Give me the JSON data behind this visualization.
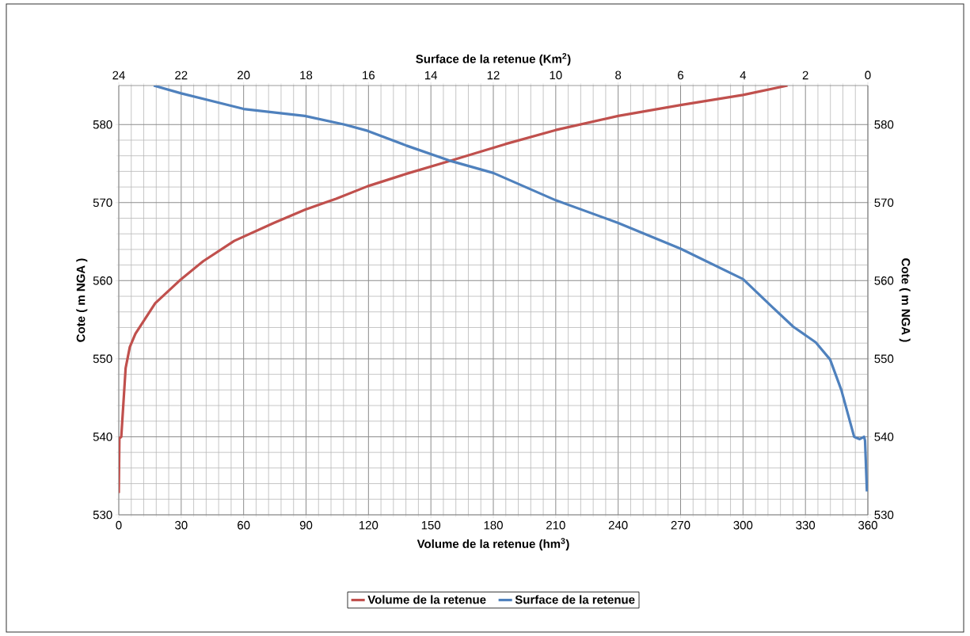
{
  "chart_data": {
    "type": "line",
    "xlabel": "Volume de la retenue (hm$^{3}$)",
    "x2label": "Surface de la retenue (Km$^{2}$)",
    "ylabel": "Cote ( m NGA )",
    "y2label": "Cote ( m NGA )",
    "xlim": [
      0,
      360
    ],
    "xticks": [
      0,
      30,
      60,
      90,
      120,
      150,
      180,
      210,
      240,
      270,
      300,
      330,
      360
    ],
    "x2lim": [
      24,
      0
    ],
    "x2ticks": [
      24,
      22,
      20,
      18,
      16,
      14,
      12,
      10,
      8,
      6,
      4,
      2,
      0
    ],
    "ylim": [
      530,
      585
    ],
    "yticks": [
      530,
      540,
      550,
      560,
      570,
      580
    ],
    "y2lim": [
      530,
      585
    ],
    "y2ticks": [
      530,
      540,
      550,
      560,
      570,
      580
    ],
    "grid": true,
    "legend": "bottom",
    "marker": "none",
    "line_style": "solid",
    "series": [
      {
        "name": "Volume de la retenue",
        "color": "#c0504d",
        "x": [
          0,
          0.3,
          1.2,
          3.3,
          5.3,
          8,
          17.5,
          30,
          40.6,
          55.5,
          74.5,
          89.5,
          104.4,
          119.6,
          138.3,
          158.7,
          185.8,
          210,
          240,
          270,
          300,
          321.4
        ],
        "values": [
          532.8,
          539.8,
          540,
          548.8,
          551.5,
          553.2,
          557.1,
          560.2,
          562.5,
          565.1,
          567.4,
          569.1,
          570.5,
          572.1,
          573.7,
          575.3,
          577.5,
          579.3,
          581.1,
          582.5,
          583.8,
          585
        ]
      },
      {
        "name": "Surface de la retenue",
        "color": "#4f81bd",
        "axis": "x2",
        "x": [
          22.88,
          22,
          20,
          18.04,
          16.77,
          16.03,
          14.78,
          13.42,
          12,
          10,
          8,
          6,
          4,
          3.11,
          2.39,
          1.67,
          1.21,
          0.85,
          0.44,
          0.26,
          0.12,
          0.09,
          0.03
        ],
        "values": [
          585,
          584,
          582,
          581.1,
          580,
          579.2,
          577.3,
          575.4,
          573.8,
          570.3,
          567.4,
          564.1,
          560.2,
          556.8,
          554.1,
          552.1,
          549.9,
          546,
          540,
          539.7,
          540,
          539.5,
          533
        ]
      }
    ]
  }
}
